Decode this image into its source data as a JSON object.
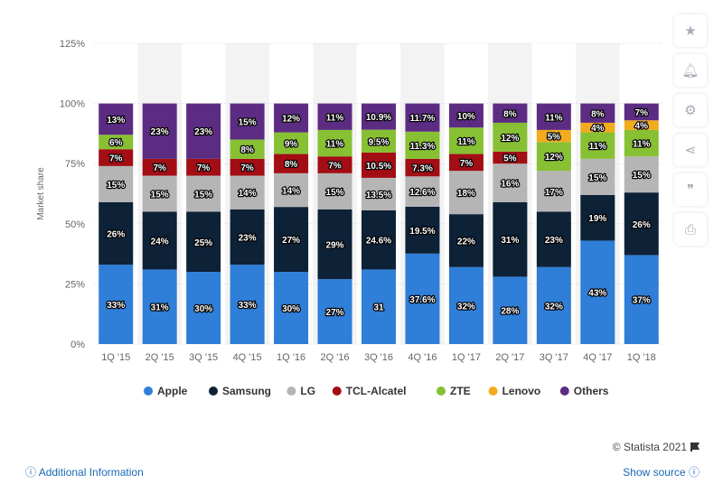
{
  "chart_data": {
    "type": "bar",
    "stacked": true,
    "categories": [
      "1Q '15",
      "2Q '15",
      "3Q '15",
      "4Q '15",
      "1Q '16",
      "2Q '16",
      "3Q '16",
      "4Q '16",
      "1Q '17",
      "2Q '17",
      "3Q '17",
      "4Q '17",
      "1Q '18"
    ],
    "series": [
      {
        "name": "Apple",
        "color": "#2f7ed8",
        "values": [
          33,
          31,
          30,
          33,
          30,
          27,
          31,
          37.6,
          32,
          28,
          32,
          43,
          37
        ],
        "labels": [
          "33%",
          "31%",
          "30%",
          "33%",
          "30%",
          "27%",
          "31",
          "37.6%",
          "32%",
          "28%",
          "32%",
          "43%",
          "37%"
        ]
      },
      {
        "name": "Samsung",
        "color": "#0d2137",
        "values": [
          26,
          24,
          25,
          23,
          27,
          29,
          24.6,
          19.5,
          22,
          31,
          23,
          19,
          26
        ],
        "labels": [
          "26%",
          "24%",
          "25%",
          "23%",
          "27%",
          "29%",
          "24.6%",
          "19.5%",
          "22%",
          "31%",
          "23%",
          "19%",
          "26%"
        ]
      },
      {
        "name": "LG",
        "color": "#b5b5b5",
        "values": [
          15,
          15,
          15,
          14,
          14,
          15,
          13.5,
          12.6,
          18,
          16,
          17,
          15,
          15
        ],
        "labels": [
          "15%",
          "15%",
          "15%",
          "14%",
          "14%",
          "15%",
          "13.5%",
          "12.6%",
          "18%",
          "16%",
          "17%",
          "15%",
          "15%"
        ]
      },
      {
        "name": "TCL-Alcatel",
        "color": "#a30d14",
        "values": [
          7,
          7,
          7,
          7,
          8,
          7,
          10.5,
          7.3,
          7,
          5,
          0,
          0,
          0
        ],
        "labels": [
          "7%",
          "7%",
          "7%",
          "7%",
          "8%",
          "7%",
          "10.5%",
          "7.3%",
          "7%",
          "5%",
          "",
          "",
          ""
        ]
      },
      {
        "name": "ZTE",
        "color": "#87c033",
        "values": [
          6,
          0,
          0,
          8,
          9,
          11,
          9.5,
          11.3,
          11,
          12,
          12,
          11,
          11
        ],
        "labels": [
          "6%",
          "",
          "",
          "8%",
          "9%",
          "11%",
          "9.5%",
          "11.3%",
          "11%",
          "12%",
          "12%",
          "11%",
          "11%"
        ]
      },
      {
        "name": "Lenovo",
        "color": "#f2ab1e",
        "values": [
          0,
          0,
          0,
          0,
          0,
          0,
          0,
          0,
          0,
          0,
          5,
          4,
          4
        ],
        "labels": [
          "",
          "",
          "",
          "",
          "",
          "",
          "",
          "",
          "",
          "",
          "5%",
          "4%",
          "4%"
        ]
      },
      {
        "name": "Others",
        "color": "#5c2c83",
        "values": [
          13,
          23,
          23,
          15,
          12,
          11,
          10.9,
          11.7,
          10,
          8,
          11,
          8,
          7
        ],
        "labels": [
          "13%",
          "23%",
          "23%",
          "15%",
          "12%",
          "11%",
          "10.9%",
          "11.7%",
          "10%",
          "8%",
          "11%",
          "8%",
          "7%"
        ]
      }
    ],
    "ylabel": "Market share",
    "ylim": [
      0,
      125
    ],
    "yticks": [
      "0%",
      "25%",
      "50%",
      "75%",
      "100%",
      "125%"
    ],
    "grid": true,
    "legend_position": "bottom"
  },
  "footer": {
    "credit": "© Statista 2021",
    "additional_info": "Additional Information",
    "show_source": "Show source"
  },
  "sidebar_icons": [
    "star-icon",
    "bell-icon",
    "gear-icon",
    "share-icon",
    "quote-icon",
    "print-icon"
  ]
}
